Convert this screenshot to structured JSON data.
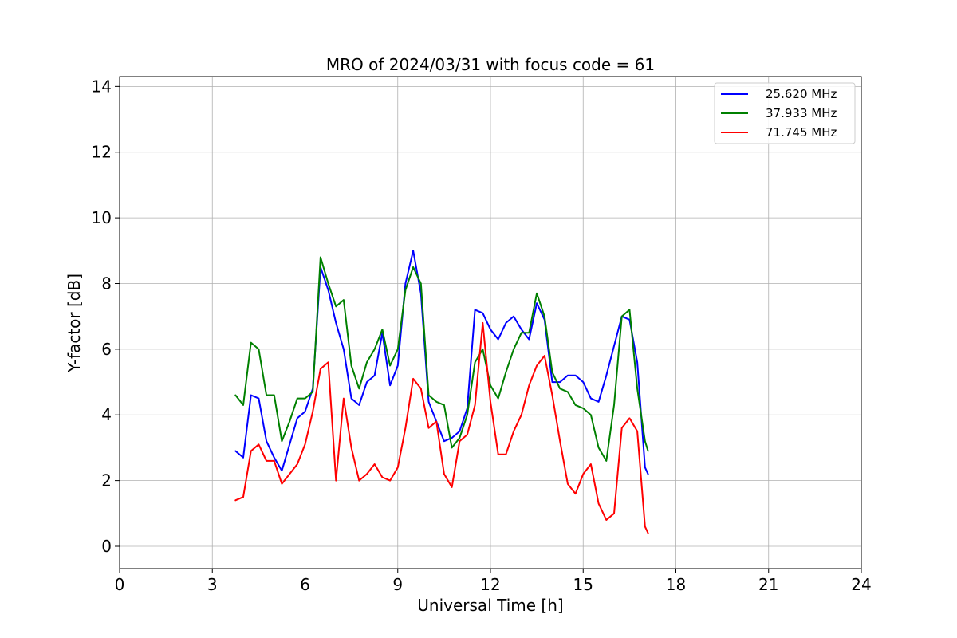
{
  "chart_data": {
    "type": "line",
    "title": "MRO of 2024/03/31 with focus code = 61",
    "xlabel": "Universal Time [h]",
    "ylabel": "Y-factor [dB]",
    "xlim": [
      0,
      24
    ],
    "ylim": [
      -0.68,
      14.3
    ],
    "xticks": [
      0,
      3,
      6,
      9,
      12,
      15,
      18,
      21,
      24
    ],
    "yticks": [
      0,
      2,
      4,
      6,
      8,
      10,
      12,
      14
    ],
    "grid": true,
    "legend_position": "top-right",
    "series": [
      {
        "name": "25.620 MHz",
        "color": "#0000ff",
        "x": [
          3.75,
          4.0,
          4.25,
          4.5,
          4.75,
          5.0,
          5.25,
          5.5,
          5.75,
          6.0,
          6.25,
          6.5,
          6.75,
          7.0,
          7.25,
          7.5,
          7.75,
          8.0,
          8.25,
          8.5,
          8.75,
          9.0,
          9.25,
          9.5,
          9.75,
          10.0,
          10.25,
          10.5,
          10.75,
          11.0,
          11.25,
          11.5,
          11.75,
          12.0,
          12.25,
          12.5,
          12.75,
          13.0,
          13.25,
          13.5,
          13.75,
          14.0,
          14.25,
          14.5,
          14.75,
          15.0,
          15.25,
          15.5,
          15.75,
          16.0,
          16.25,
          16.5,
          16.75,
          17.0,
          17.1
        ],
        "y": [
          2.9,
          2.7,
          4.6,
          4.5,
          3.2,
          2.7,
          2.3,
          3.1,
          3.9,
          4.1,
          4.8,
          8.5,
          7.8,
          6.8,
          6.0,
          4.5,
          4.3,
          5.0,
          5.2,
          6.5,
          4.9,
          5.5,
          8.0,
          9.0,
          7.7,
          4.4,
          3.8,
          3.2,
          3.3,
          3.5,
          4.2,
          7.2,
          7.1,
          6.6,
          6.3,
          6.8,
          7.0,
          6.6,
          6.3,
          7.4,
          6.9,
          5.0,
          5.0,
          5.2,
          5.2,
          5.0,
          4.5,
          4.4,
          5.2,
          6.1,
          7.0,
          6.9,
          5.6,
          2.4,
          2.2
        ]
      },
      {
        "name": "37.933 MHz",
        "color": "#008000",
        "x": [
          3.75,
          4.0,
          4.25,
          4.5,
          4.75,
          5.0,
          5.25,
          5.5,
          5.75,
          6.0,
          6.25,
          6.5,
          6.75,
          7.0,
          7.25,
          7.5,
          7.75,
          8.0,
          8.25,
          8.5,
          8.75,
          9.0,
          9.25,
          9.5,
          9.75,
          10.0,
          10.25,
          10.5,
          10.75,
          11.0,
          11.25,
          11.5,
          11.75,
          12.0,
          12.25,
          12.5,
          12.75,
          13.0,
          13.25,
          13.5,
          13.75,
          14.0,
          14.25,
          14.5,
          14.75,
          15.0,
          15.25,
          15.5,
          15.75,
          16.0,
          16.25,
          16.5,
          16.75,
          17.0,
          17.1
        ],
        "y": [
          4.6,
          4.3,
          6.2,
          6.0,
          4.6,
          4.6,
          3.2,
          3.8,
          4.5,
          4.5,
          4.7,
          8.8,
          8.0,
          7.3,
          7.5,
          5.5,
          4.8,
          5.6,
          6.0,
          6.6,
          5.5,
          6.0,
          7.8,
          8.5,
          8.0,
          4.6,
          4.4,
          4.3,
          3.0,
          3.3,
          4.0,
          5.6,
          6.0,
          4.9,
          4.5,
          5.3,
          6.0,
          6.5,
          6.5,
          7.7,
          7.0,
          5.3,
          4.8,
          4.7,
          4.3,
          4.2,
          4.0,
          3.0,
          2.6,
          4.3,
          7.0,
          7.2,
          4.8,
          3.2,
          2.9
        ]
      },
      {
        "name": "71.745 MHz",
        "color": "#ff0000",
        "x": [
          3.75,
          4.0,
          4.25,
          4.5,
          4.75,
          5.0,
          5.25,
          5.5,
          5.75,
          6.0,
          6.25,
          6.5,
          6.75,
          7.0,
          7.25,
          7.5,
          7.75,
          8.0,
          8.25,
          8.5,
          8.75,
          9.0,
          9.25,
          9.5,
          9.75,
          10.0,
          10.25,
          10.5,
          10.75,
          11.0,
          11.25,
          11.5,
          11.75,
          12.0,
          12.25,
          12.5,
          12.75,
          13.0,
          13.25,
          13.5,
          13.75,
          14.0,
          14.25,
          14.5,
          14.75,
          15.0,
          15.25,
          15.5,
          15.75,
          16.0,
          16.25,
          16.5,
          16.75,
          17.0,
          17.1
        ],
        "y": [
          1.4,
          1.5,
          2.9,
          3.1,
          2.6,
          2.6,
          1.9,
          2.2,
          2.5,
          3.1,
          4.1,
          5.4,
          5.6,
          2.0,
          4.5,
          3.0,
          2.0,
          2.2,
          2.5,
          2.1,
          2.0,
          2.4,
          3.6,
          5.1,
          4.8,
          3.6,
          3.8,
          2.2,
          1.8,
          3.2,
          3.4,
          4.3,
          6.8,
          4.4,
          2.8,
          2.8,
          3.5,
          4.0,
          4.9,
          5.5,
          5.8,
          4.6,
          3.2,
          1.9,
          1.6,
          2.2,
          2.5,
          1.3,
          0.8,
          1.0,
          3.6,
          3.9,
          3.5,
          0.6,
          0.4
        ]
      }
    ]
  }
}
